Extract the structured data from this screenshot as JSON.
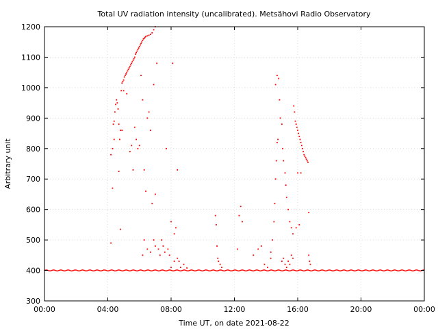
{
  "chart_data": {
    "type": "scatter",
    "title": "Total UV radiation intensity (uncalibrated). Metsähovi Radio Observatory",
    "xlabel": "Time UT, on date 2021-08-22",
    "ylabel": "Arbitrary unit",
    "xlim": [
      0,
      24
    ],
    "ylim": [
      300,
      1200
    ],
    "grid": true,
    "colors": {
      "points": "#ff0000",
      "grid": "#c8c8c8"
    },
    "x_ticks": [
      {
        "value": 0,
        "label": "00:00"
      },
      {
        "value": 4,
        "label": "04:00"
      },
      {
        "value": 8,
        "label": "08:00"
      },
      {
        "value": 12,
        "label": "12:00"
      },
      {
        "value": 16,
        "label": "16:00"
      },
      {
        "value": 20,
        "label": "20:00"
      },
      {
        "value": 24,
        "label": "00:00"
      }
    ],
    "y_ticks": [
      {
        "value": 300,
        "label": "300"
      },
      {
        "value": 400,
        "label": "400"
      },
      {
        "value": 500,
        "label": "500"
      },
      {
        "value": 600,
        "label": "600"
      },
      {
        "value": 700,
        "label": "700"
      },
      {
        "value": 800,
        "label": "800"
      },
      {
        "value": 900,
        "label": "900"
      },
      {
        "value": 1000,
        "label": "1000"
      },
      {
        "value": 1100,
        "label": "1100"
      },
      {
        "value": 1200,
        "label": "1200"
      }
    ],
    "points": [
      [
        4.2,
        490
      ],
      [
        4.3,
        670
      ],
      [
        4.3,
        800
      ],
      [
        4.35,
        880
      ],
      [
        4.4,
        890
      ],
      [
        4.45,
        920
      ],
      [
        4.5,
        945
      ],
      [
        4.55,
        960
      ],
      [
        4.6,
        950
      ],
      [
        4.65,
        930
      ],
      [
        4.7,
        880
      ],
      [
        4.75,
        830
      ],
      [
        4.8,
        860
      ],
      [
        4.85,
        990
      ],
      [
        4.9,
        1015
      ],
      [
        4.95,
        1020
      ],
      [
        5.0,
        1025
      ],
      [
        5.05,
        1035
      ],
      [
        5.1,
        1040
      ],
      [
        5.15,
        1045
      ],
      [
        5.2,
        1050
      ],
      [
        5.25,
        1055
      ],
      [
        5.3,
        1060
      ],
      [
        5.35,
        1065
      ],
      [
        5.4,
        1070
      ],
      [
        5.45,
        1075
      ],
      [
        5.5,
        1080
      ],
      [
        5.55,
        1085
      ],
      [
        5.6,
        1090
      ],
      [
        5.65,
        1095
      ],
      [
        5.7,
        1100
      ],
      [
        5.75,
        1110
      ],
      [
        5.8,
        1115
      ],
      [
        5.85,
        1120
      ],
      [
        5.9,
        1125
      ],
      [
        5.95,
        1130
      ],
      [
        6.0,
        1135
      ],
      [
        6.05,
        1140
      ],
      [
        6.1,
        1145
      ],
      [
        6.15,
        1150
      ],
      [
        6.2,
        1155
      ],
      [
        6.25,
        1160
      ],
      [
        6.3,
        1162
      ],
      [
        6.35,
        1165
      ],
      [
        6.4,
        1168
      ],
      [
        6.5,
        1170
      ],
      [
        6.6,
        1172
      ],
      [
        6.7,
        1175
      ],
      [
        6.8,
        1180
      ],
      [
        6.9,
        1190
      ],
      [
        7.0,
        1200
      ],
      [
        4.2,
        780
      ],
      [
        4.4,
        830
      ],
      [
        4.7,
        725
      ],
      [
        4.8,
        535
      ],
      [
        4.9,
        860
      ],
      [
        5.0,
        990
      ],
      [
        5.2,
        980
      ],
      [
        5.4,
        790
      ],
      [
        5.5,
        810
      ],
      [
        5.6,
        730
      ],
      [
        5.7,
        870
      ],
      [
        5.8,
        830
      ],
      [
        5.9,
        800
      ],
      [
        6.0,
        810
      ],
      [
        6.1,
        1040
      ],
      [
        6.2,
        960
      ],
      [
        6.3,
        730
      ],
      [
        6.4,
        660
      ],
      [
        6.5,
        900
      ],
      [
        6.6,
        920
      ],
      [
        6.7,
        860
      ],
      [
        6.8,
        620
      ],
      [
        6.9,
        1010
      ],
      [
        7.0,
        650
      ],
      [
        7.1,
        1080
      ],
      [
        7.3,
        450
      ],
      [
        7.5,
        480
      ],
      [
        7.7,
        800
      ],
      [
        7.9,
        450
      ],
      [
        8.0,
        560
      ],
      [
        8.1,
        1080
      ],
      [
        8.2,
        520
      ],
      [
        8.3,
        540
      ],
      [
        8.4,
        730
      ],
      [
        8.5,
        430
      ],
      [
        6.2,
        450
      ],
      [
        6.3,
        500
      ],
      [
        6.5,
        470
      ],
      [
        6.7,
        460
      ],
      [
        6.9,
        500
      ],
      [
        7.0,
        480
      ],
      [
        7.2,
        470
      ],
      [
        7.4,
        500
      ],
      [
        7.6,
        460
      ],
      [
        7.8,
        470
      ],
      [
        8.0,
        410
      ],
      [
        8.2,
        430
      ],
      [
        8.4,
        440
      ],
      [
        8.6,
        410
      ],
      [
        8.8,
        420
      ],
      [
        9.0,
        408
      ],
      [
        10.8,
        580
      ],
      [
        10.85,
        550
      ],
      [
        10.9,
        480
      ],
      [
        10.95,
        440
      ],
      [
        11.0,
        430
      ],
      [
        11.1,
        420
      ],
      [
        11.2,
        410
      ],
      [
        12.3,
        580
      ],
      [
        12.4,
        610
      ],
      [
        12.5,
        560
      ],
      [
        12.2,
        470
      ],
      [
        13.2,
        450
      ],
      [
        13.5,
        470
      ],
      [
        13.7,
        480
      ],
      [
        13.9,
        420
      ],
      [
        14.1,
        410
      ],
      [
        14.3,
        440
      ],
      [
        14.3,
        460
      ],
      [
        14.4,
        500
      ],
      [
        14.5,
        560
      ],
      [
        14.55,
        620
      ],
      [
        14.6,
        700
      ],
      [
        14.65,
        760
      ],
      [
        14.7,
        820
      ],
      [
        14.75,
        830
      ],
      [
        14.6,
        1010
      ],
      [
        14.7,
        1040
      ],
      [
        14.8,
        1030
      ],
      [
        14.85,
        960
      ],
      [
        14.9,
        900
      ],
      [
        15.0,
        880
      ],
      [
        15.05,
        800
      ],
      [
        15.1,
        760
      ],
      [
        15.2,
        720
      ],
      [
        15.25,
        680
      ],
      [
        15.3,
        640
      ],
      [
        15.4,
        600
      ],
      [
        15.5,
        560
      ],
      [
        15.6,
        540
      ],
      [
        15.7,
        520
      ],
      [
        15.75,
        940
      ],
      [
        15.8,
        920
      ],
      [
        15.85,
        890
      ],
      [
        15.9,
        880
      ],
      [
        15.95,
        870
      ],
      [
        16.0,
        860
      ],
      [
        16.05,
        850
      ],
      [
        16.1,
        840
      ],
      [
        16.15,
        830
      ],
      [
        16.2,
        820
      ],
      [
        16.25,
        810
      ],
      [
        16.3,
        800
      ],
      [
        16.35,
        790
      ],
      [
        16.4,
        780
      ],
      [
        16.45,
        775
      ],
      [
        16.5,
        770
      ],
      [
        16.55,
        765
      ],
      [
        16.6,
        760
      ],
      [
        16.65,
        755
      ],
      [
        16.7,
        450
      ],
      [
        16.75,
        430
      ],
      [
        15.0,
        430
      ],
      [
        15.1,
        440
      ],
      [
        15.2,
        420
      ],
      [
        15.3,
        410
      ],
      [
        15.4,
        430
      ],
      [
        15.5,
        420
      ],
      [
        15.6,
        450
      ],
      [
        15.7,
        440
      ],
      [
        15.9,
        540
      ],
      [
        16.0,
        720
      ],
      [
        16.1,
        550
      ],
      [
        16.2,
        720
      ],
      [
        16.7,
        590
      ],
      [
        16.8,
        420
      ]
    ]
  }
}
